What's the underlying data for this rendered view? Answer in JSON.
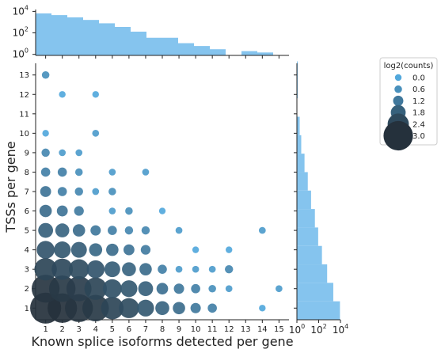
{
  "chart_data": {
    "type": "scatter",
    "xlabel": "Known splice isoforms detected per gene",
    "ylabel": "TSSs per gene",
    "x_ticks": [
      "1",
      "2",
      "3",
      "4",
      "5",
      "6",
      "7",
      "8",
      "9",
      "10",
      "11",
      "12",
      "13",
      "14",
      "15"
    ],
    "y_ticks": [
      "1",
      "2",
      "3",
      "4",
      "5",
      "6",
      "7",
      "8",
      "9",
      "10",
      "11",
      "12",
      "13"
    ],
    "xlim": [
      0.4,
      15.6
    ],
    "ylim": [
      0.4,
      13.6
    ],
    "legend": {
      "title": "log2(counts)",
      "position": "top-right",
      "entries": [
        {
          "label": "0.0",
          "value": 0.0
        },
        {
          "label": "0.6",
          "value": 0.6
        },
        {
          "label": "1.2",
          "value": 1.2
        },
        {
          "label": "1.8",
          "value": 1.8
        },
        {
          "label": "2.4",
          "value": 2.4
        },
        {
          "label": "3.0",
          "value": 3.0
        }
      ]
    },
    "points": [
      {
        "x": 1,
        "y": 1,
        "v": 3.1
      },
      {
        "x": 2,
        "y": 1,
        "v": 3.0
      },
      {
        "x": 3,
        "y": 1,
        "v": 2.9
      },
      {
        "x": 4,
        "y": 1,
        "v": 2.8
      },
      {
        "x": 5,
        "y": 1,
        "v": 2.5
      },
      {
        "x": 6,
        "y": 1,
        "v": 2.3
      },
      {
        "x": 7,
        "y": 1,
        "v": 2.0
      },
      {
        "x": 8,
        "y": 1,
        "v": 1.7
      },
      {
        "x": 9,
        "y": 1,
        "v": 1.5
      },
      {
        "x": 10,
        "y": 1,
        "v": 1.2
      },
      {
        "x": 11,
        "y": 1,
        "v": 1.0
      },
      {
        "x": 14,
        "y": 1,
        "v": 0.0
      },
      {
        "x": 1,
        "y": 2,
        "v": 2.9
      },
      {
        "x": 2,
        "y": 2,
        "v": 2.8
      },
      {
        "x": 3,
        "y": 2,
        "v": 2.7
      },
      {
        "x": 4,
        "y": 2,
        "v": 2.5
      },
      {
        "x": 5,
        "y": 2,
        "v": 2.2
      },
      {
        "x": 6,
        "y": 2,
        "v": 2.0
      },
      {
        "x": 7,
        "y": 2,
        "v": 1.8
      },
      {
        "x": 8,
        "y": 2,
        "v": 1.4
      },
      {
        "x": 9,
        "y": 2,
        "v": 1.2
      },
      {
        "x": 10,
        "y": 2,
        "v": 1.0
      },
      {
        "x": 11,
        "y": 2,
        "v": 0.6
      },
      {
        "x": 12,
        "y": 2,
        "v": 0.3
      },
      {
        "x": 15,
        "y": 2,
        "v": 0.3
      },
      {
        "x": 1,
        "y": 3,
        "v": 2.5
      },
      {
        "x": 2,
        "y": 3,
        "v": 2.4
      },
      {
        "x": 3,
        "y": 3,
        "v": 2.3
      },
      {
        "x": 4,
        "y": 3,
        "v": 2.1
      },
      {
        "x": 5,
        "y": 3,
        "v": 1.9
      },
      {
        "x": 6,
        "y": 3,
        "v": 1.7
      },
      {
        "x": 7,
        "y": 3,
        "v": 1.5
      },
      {
        "x": 8,
        "y": 3,
        "v": 1.0
      },
      {
        "x": 9,
        "y": 3,
        "v": 0.3
      },
      {
        "x": 10,
        "y": 3,
        "v": 0.3
      },
      {
        "x": 11,
        "y": 3,
        "v": 0.3
      },
      {
        "x": 12,
        "y": 3,
        "v": 0.8
      },
      {
        "x": 1,
        "y": 4,
        "v": 2.1
      },
      {
        "x": 2,
        "y": 4,
        "v": 2.0
      },
      {
        "x": 3,
        "y": 4,
        "v": 1.9
      },
      {
        "x": 4,
        "y": 4,
        "v": 1.6
      },
      {
        "x": 5,
        "y": 4,
        "v": 1.5
      },
      {
        "x": 6,
        "y": 4,
        "v": 1.3
      },
      {
        "x": 7,
        "y": 4,
        "v": 1.1
      },
      {
        "x": 10,
        "y": 4,
        "v": 0.0
      },
      {
        "x": 12,
        "y": 4,
        "v": 0.0
      },
      {
        "x": 1,
        "y": 5,
        "v": 1.8
      },
      {
        "x": 2,
        "y": 5,
        "v": 1.7
      },
      {
        "x": 3,
        "y": 5,
        "v": 1.5
      },
      {
        "x": 4,
        "y": 5,
        "v": 1.2
      },
      {
        "x": 5,
        "y": 5,
        "v": 1.0
      },
      {
        "x": 6,
        "y": 5,
        "v": 0.8
      },
      {
        "x": 7,
        "y": 5,
        "v": 0.8
      },
      {
        "x": 9,
        "y": 5,
        "v": 0.3
      },
      {
        "x": 14,
        "y": 5,
        "v": 0.3
      },
      {
        "x": 1,
        "y": 6,
        "v": 1.5
      },
      {
        "x": 2,
        "y": 6,
        "v": 1.3
      },
      {
        "x": 3,
        "y": 6,
        "v": 1.1
      },
      {
        "x": 5,
        "y": 6,
        "v": 0.3
      },
      {
        "x": 6,
        "y": 6,
        "v": 0.6
      },
      {
        "x": 8,
        "y": 6,
        "v": 0.0
      },
      {
        "x": 1,
        "y": 7,
        "v": 1.3
      },
      {
        "x": 2,
        "y": 7,
        "v": 1.0
      },
      {
        "x": 3,
        "y": 7,
        "v": 0.8
      },
      {
        "x": 4,
        "y": 7,
        "v": 0.3
      },
      {
        "x": 5,
        "y": 7,
        "v": 0.6
      },
      {
        "x": 1,
        "y": 8,
        "v": 1.0
      },
      {
        "x": 2,
        "y": 8,
        "v": 1.0
      },
      {
        "x": 3,
        "y": 8,
        "v": 0.6
      },
      {
        "x": 5,
        "y": 8,
        "v": 0.3
      },
      {
        "x": 7,
        "y": 8,
        "v": 0.3
      },
      {
        "x": 1,
        "y": 9,
        "v": 0.8
      },
      {
        "x": 2,
        "y": 9,
        "v": 0.3
      },
      {
        "x": 3,
        "y": 9,
        "v": 0.3
      },
      {
        "x": 1,
        "y": 10,
        "v": 0.0
      },
      {
        "x": 4,
        "y": 10,
        "v": 0.3
      },
      {
        "x": 2,
        "y": 12,
        "v": 0.0
      },
      {
        "x": 4,
        "y": 12,
        "v": 0.0
      },
      {
        "x": 1,
        "y": 13,
        "v": 0.6
      }
    ],
    "top_marginal": {
      "type": "histogram",
      "y_scale": "log",
      "y_ticks": [
        {
          "label": "10",
          "exp": "0",
          "value": 1
        },
        {
          "label": "10",
          "exp": "2",
          "value": 100
        },
        {
          "label": "10",
          "exp": "4",
          "value": 10000
        }
      ],
      "ylim": [
        0.8,
        15000
      ],
      "bins": [
        {
          "x0": 0.4,
          "x1": 1.35,
          "count": 6500
        },
        {
          "x0": 1.35,
          "x1": 2.3,
          "count": 4500
        },
        {
          "x0": 2.3,
          "x1": 3.25,
          "count": 2800
        },
        {
          "x0": 3.25,
          "x1": 4.2,
          "count": 1600
        },
        {
          "x0": 4.2,
          "x1": 5.15,
          "count": 780
        },
        {
          "x0": 5.15,
          "x1": 6.1,
          "count": 360
        },
        {
          "x0": 6.1,
          "x1": 7.05,
          "count": 130
        },
        {
          "x0": 7.05,
          "x1": 8.0,
          "count": 35
        },
        {
          "x0": 8.0,
          "x1": 8.95,
          "count": 35
        },
        {
          "x0": 8.95,
          "x1": 9.9,
          "count": 11
        },
        {
          "x0": 9.9,
          "x1": 10.85,
          "count": 6
        },
        {
          "x0": 10.85,
          "x1": 11.8,
          "count": 3
        },
        {
          "x0": 11.8,
          "x1": 12.75,
          "count": 0
        },
        {
          "x0": 12.75,
          "x1": 13.7,
          "count": 2
        },
        {
          "x0": 13.7,
          "x1": 14.65,
          "count": 1.5
        }
      ]
    },
    "right_marginal": {
      "type": "histogram",
      "x_scale": "log",
      "x_ticks": [
        {
          "label": "10",
          "exp": "0",
          "value": 1
        },
        {
          "label": "10",
          "exp": "2",
          "value": 100
        },
        {
          "label": "10",
          "exp": "4",
          "value": 10000
        }
      ],
      "xlim": [
        1,
        10000
      ],
      "bins": [
        {
          "y0": 0.4,
          "y1": 1.35,
          "count": 9000
        },
        {
          "y0": 1.35,
          "y1": 2.3,
          "count": 2200
        },
        {
          "y0": 2.3,
          "y1": 3.25,
          "count": 600
        },
        {
          "y0": 3.25,
          "y1": 4.2,
          "count": 200
        },
        {
          "y0": 4.2,
          "y1": 5.15,
          "count": 90
        },
        {
          "y0": 5.15,
          "y1": 6.1,
          "count": 45
        },
        {
          "y0": 6.1,
          "y1": 7.05,
          "count": 20
        },
        {
          "y0": 7.05,
          "y1": 8.0,
          "count": 10
        },
        {
          "y0": 8.0,
          "y1": 8.95,
          "count": 5
        },
        {
          "y0": 8.95,
          "y1": 9.9,
          "count": 2.5
        },
        {
          "y0": 9.9,
          "y1": 10.85,
          "count": 1.8
        },
        {
          "y0": 10.85,
          "y1": 11.8,
          "count": 0
        },
        {
          "y0": 11.8,
          "y1": 12.75,
          "count": 1.2
        },
        {
          "y0": 12.75,
          "y1": 13.7,
          "count": 1.2
        }
      ]
    },
    "colors": {
      "histogram": "#85c4ee",
      "color_low": "#52a8dc",
      "color_high": "#25313c"
    }
  }
}
